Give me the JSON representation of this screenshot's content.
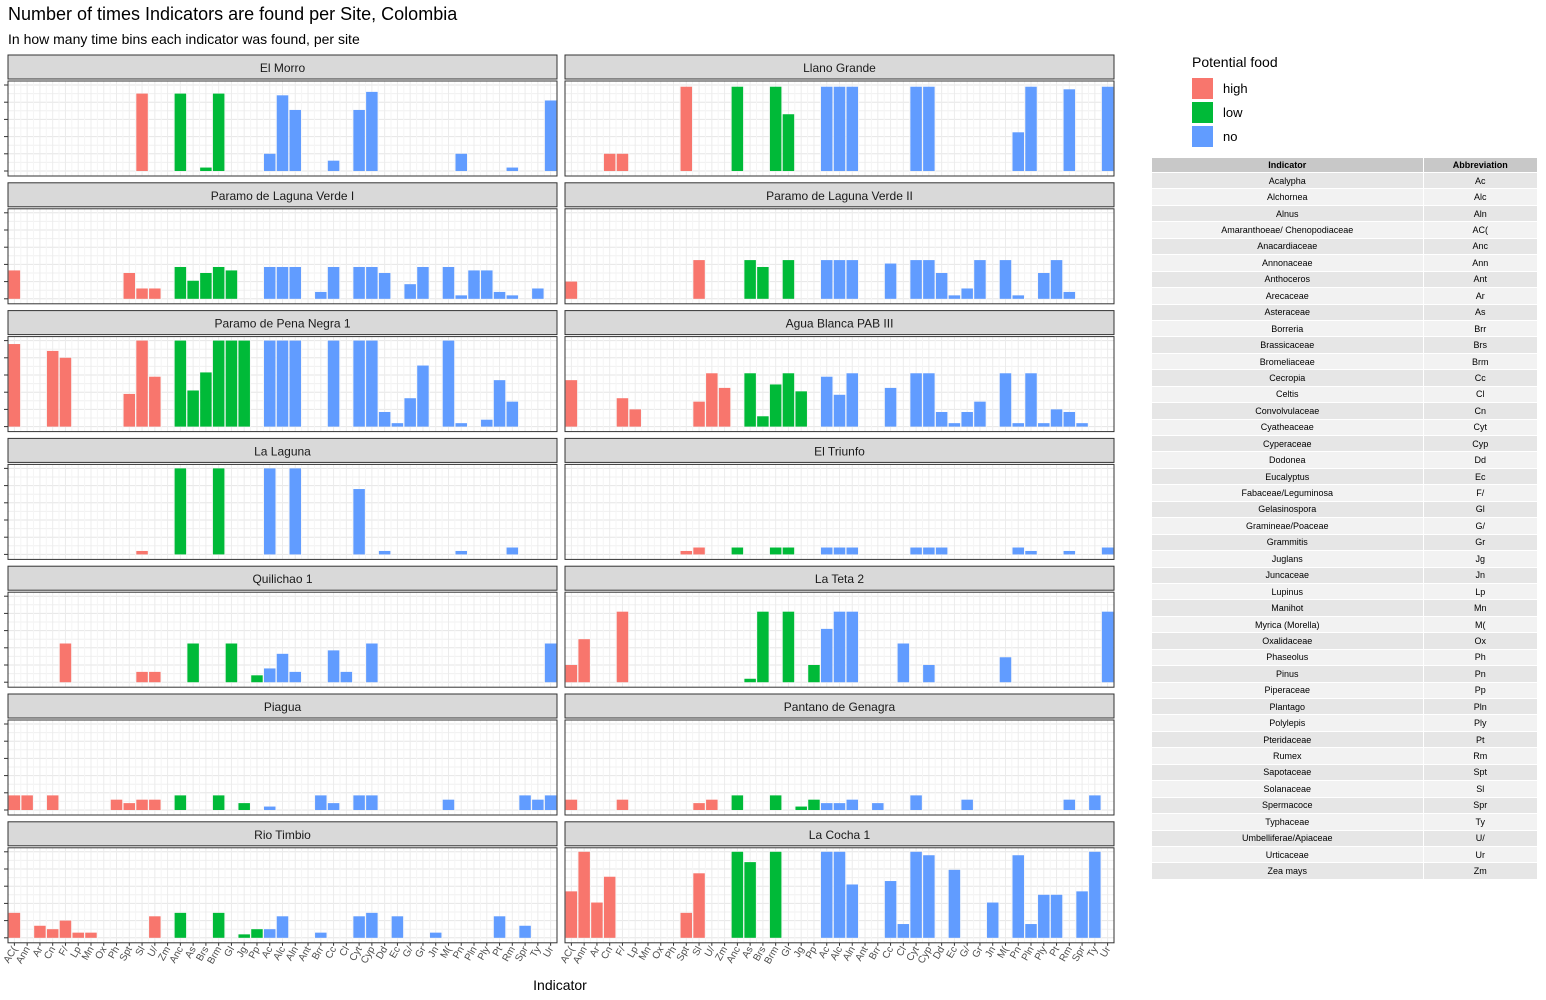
{
  "title": "Number of times Indicators are found per Site, Colombia",
  "subtitle": "In how many time bins each indicator was found, per site",
  "legend": {
    "title": "Potential food",
    "items": [
      {
        "key": "high",
        "label": "high",
        "color": "#F8766D"
      },
      {
        "key": "low",
        "label": "low",
        "color": "#00BA38"
      },
      {
        "key": "no",
        "label": "no",
        "color": "#619CFF"
      }
    ]
  },
  "table": {
    "headers": [
      "Indicator",
      "Abbreviation"
    ],
    "rows": [
      [
        "Acalypha",
        "Ac"
      ],
      [
        "Alchornea",
        "Alc"
      ],
      [
        "Alnus",
        "Aln"
      ],
      [
        "Amaranthoeae/ Chenopodiaceae",
        "AC("
      ],
      [
        "Anacardiaceae",
        "Anc"
      ],
      [
        "Annonaceae",
        "Ann"
      ],
      [
        "Anthoceros",
        "Ant"
      ],
      [
        "Arecaceae",
        "Ar"
      ],
      [
        "Asteraceae",
        "As"
      ],
      [
        "Borreria",
        "Brr"
      ],
      [
        "Brassicaceae",
        "Brs"
      ],
      [
        "Bromeliaceae",
        "Brm"
      ],
      [
        "Cecropia",
        "Cc"
      ],
      [
        "Celtis",
        "Cl"
      ],
      [
        "Convolvulaceae",
        "Cn"
      ],
      [
        "Cyatheaceae",
        "Cyt"
      ],
      [
        "Cyperaceae",
        "Cyp"
      ],
      [
        "Dodonea",
        "Dd"
      ],
      [
        "Eucalyptus",
        "Ec"
      ],
      [
        "Fabaceae/Leguminosa",
        "F/"
      ],
      [
        "Gelasinospora",
        "Gl"
      ],
      [
        "Gramineae/Poaceae",
        "G/"
      ],
      [
        "Grammitis",
        "Gr"
      ],
      [
        "Juglans",
        "Jg"
      ],
      [
        "Juncaceae",
        "Jn"
      ],
      [
        "Lupinus",
        "Lp"
      ],
      [
        "Manihot",
        "Mn"
      ],
      [
        "Myrica (Morella)",
        "M("
      ],
      [
        "Oxalidaceae",
        "Ox"
      ],
      [
        "Phaseolus",
        "Ph"
      ],
      [
        "Pinus",
        "Pn"
      ],
      [
        "Piperaceae",
        "Pp"
      ],
      [
        "Plantago",
        "Pln"
      ],
      [
        "Polylepis",
        "Ply"
      ],
      [
        "Pteridaceae",
        "Pt"
      ],
      [
        "Rumex",
        "Rm"
      ],
      [
        "Sapotaceae",
        "Spt"
      ],
      [
        "Solanaceae",
        "Sl"
      ],
      [
        "Spermacoce",
        "Spr"
      ],
      [
        "Typhaceae",
        "Ty"
      ],
      [
        "Umbelliferae/Apiaceae",
        "U/"
      ],
      [
        "Urticaceae",
        "Ur"
      ],
      [
        "Zea mays",
        "Zm"
      ]
    ]
  },
  "chart_data": {
    "type": "bar",
    "xlabel": "Indicator",
    "ylabel": "",
    "ylim": [
      0,
      1
    ],
    "categories": [
      "AC(",
      "Ann",
      "Ar",
      "Cn",
      "F/",
      "Lp",
      "Mn",
      "Ox",
      "Ph",
      "Spt",
      "Sl",
      "U/",
      "Zm",
      "Anc",
      "As",
      "Brs",
      "Brm",
      "Gl",
      "Jg",
      "Pp",
      "Ac",
      "Alc",
      "Aln",
      "Ant",
      "Brr",
      "Cc",
      "Cl",
      "Cyt",
      "Cyp",
      "Dd",
      "Ec",
      "G/",
      "Gr",
      "Jn",
      "M(",
      "Pn",
      "Pln",
      "Ply",
      "Pt",
      "Rm",
      "Spr",
      "Ty",
      "Ur"
    ],
    "category_food": [
      "high",
      "high",
      "high",
      "high",
      "high",
      "high",
      "high",
      "high",
      "high",
      "high",
      "high",
      "high",
      "high",
      "low",
      "low",
      "low",
      "low",
      "low",
      "low",
      "low",
      "no",
      "no",
      "no",
      "no",
      "no",
      "no",
      "no",
      "no",
      "no",
      "no",
      "no",
      "no",
      "no",
      "no",
      "no",
      "no",
      "no",
      "no",
      "no",
      "no",
      "no",
      "no",
      "no"
    ],
    "facets": [
      {
        "name": "El Morro",
        "values": [
          0,
          0,
          0,
          0,
          0,
          0,
          0,
          0,
          0,
          0,
          0.9,
          0,
          0,
          0.9,
          0,
          0.04,
          0.9,
          0,
          0,
          0,
          0.2,
          0.88,
          0.71,
          0,
          0,
          0.12,
          0,
          0.71,
          0.92,
          0,
          0,
          0,
          0,
          0,
          0,
          0.2,
          0,
          0,
          0,
          0.04,
          0,
          0,
          0.82
        ]
      },
      {
        "name": "Llano Grande",
        "values": [
          0,
          0,
          0,
          0.2,
          0.2,
          0,
          0,
          0,
          0,
          0.98,
          0,
          0,
          0,
          0.98,
          0,
          0,
          0.98,
          0.66,
          0,
          0,
          0.98,
          0.98,
          0.98,
          0,
          0,
          0,
          0,
          0.98,
          0.98,
          0,
          0,
          0,
          0,
          0,
          0,
          0.45,
          0.98,
          0,
          0,
          0.95,
          0,
          0,
          0.98
        ]
      },
      {
        "name": "Paramo de Laguna Verde I",
        "values": [
          0.33,
          0,
          0,
          0,
          0,
          0,
          0,
          0,
          0,
          0.3,
          0.12,
          0.12,
          0,
          0.37,
          0.21,
          0.3,
          0.37,
          0.33,
          0,
          0,
          0.37,
          0.37,
          0.37,
          0,
          0.08,
          0.37,
          0,
          0.37,
          0.37,
          0.3,
          0,
          0.17,
          0.37,
          0,
          0.37,
          0.04,
          0.33,
          0.33,
          0.08,
          0.04,
          0,
          0.12,
          0
        ]
      },
      {
        "name": "Paramo de Laguna Verde II",
        "values": [
          0.2,
          0,
          0,
          0,
          0,
          0,
          0,
          0,
          0,
          0,
          0.45,
          0,
          0,
          0,
          0.45,
          0.37,
          0,
          0.45,
          0,
          0,
          0.45,
          0.45,
          0.45,
          0,
          0,
          0.41,
          0,
          0.45,
          0.45,
          0.3,
          0.04,
          0.12,
          0.45,
          0,
          0.45,
          0.04,
          0,
          0.3,
          0.45,
          0.08,
          0,
          0,
          0
        ]
      },
      {
        "name": "Paramo de Pena Negra 1",
        "values": [
          0.96,
          0,
          0,
          0.88,
          0.8,
          0,
          0,
          0,
          0,
          0.38,
          1.0,
          0.58,
          0,
          1.0,
          0.42,
          0.63,
          1.0,
          1.0,
          1.0,
          0,
          1.0,
          1.0,
          1.0,
          0,
          0,
          1.0,
          0,
          1.0,
          1.0,
          0.17,
          0.04,
          0.33,
          0.71,
          0,
          1.0,
          0.04,
          0,
          0.08,
          0.54,
          0.29,
          0,
          0,
          0
        ]
      },
      {
        "name": "Agua Blanca PAB III",
        "values": [
          0.54,
          0,
          0,
          0,
          0.33,
          0.2,
          0,
          0,
          0,
          0,
          0.29,
          0.62,
          0.45,
          0,
          0.62,
          0.12,
          0.49,
          0.62,
          0.41,
          0,
          0.58,
          0.37,
          0.62,
          0,
          0,
          0.45,
          0,
          0.62,
          0.62,
          0.17,
          0.04,
          0.17,
          0.29,
          0,
          0.62,
          0.04,
          0.62,
          0.04,
          0.2,
          0.17,
          0.04,
          0,
          0
        ]
      },
      {
        "name": "La Laguna",
        "values": [
          0,
          0,
          0,
          0,
          0,
          0,
          0,
          0,
          0,
          0,
          0.04,
          0,
          0,
          1.0,
          0,
          0,
          1.0,
          0,
          0,
          0,
          1.0,
          0,
          1.0,
          0,
          0,
          0,
          0,
          0.76,
          0,
          0.04,
          0,
          0,
          0,
          0,
          0,
          0.04,
          0,
          0,
          0,
          0.08,
          0,
          0,
          0
        ]
      },
      {
        "name": "El Triunfo",
        "values": [
          0,
          0,
          0,
          0,
          0,
          0,
          0,
          0,
          0,
          0.04,
          0.08,
          0,
          0,
          0.08,
          0,
          0,
          0.08,
          0.08,
          0,
          0,
          0.08,
          0.08,
          0.08,
          0,
          0,
          0,
          0,
          0.08,
          0.08,
          0.08,
          0,
          0,
          0,
          0,
          0,
          0.08,
          0.04,
          0,
          0,
          0.04,
          0,
          0,
          0.08
        ]
      },
      {
        "name": "Quilichao 1",
        "values": [
          0,
          0,
          0,
          0,
          0.45,
          0,
          0,
          0,
          0,
          0,
          0.12,
          0.12,
          0,
          0,
          0.45,
          0,
          0,
          0.45,
          0,
          0.08,
          0.16,
          0.33,
          0.12,
          0,
          0,
          0.37,
          0.12,
          0,
          0.45,
          0,
          0,
          0,
          0,
          0,
          0,
          0,
          0,
          0,
          0,
          0,
          0,
          0,
          0.45
        ]
      },
      {
        "name": "La Teta 2",
        "values": [
          0.2,
          0.5,
          0,
          0,
          0.82,
          0,
          0,
          0,
          0,
          0,
          0,
          0,
          0,
          0,
          0.04,
          0.82,
          0,
          0.82,
          0,
          0.2,
          0.62,
          0.82,
          0.82,
          0,
          0,
          0,
          0.45,
          0,
          0.2,
          0,
          0,
          0,
          0,
          0,
          0.29,
          0,
          0,
          0,
          0,
          0,
          0,
          0,
          0.82
        ]
      },
      {
        "name": "Piagua",
        "values": [
          0.17,
          0.17,
          0,
          0.17,
          0,
          0,
          0,
          0,
          0.12,
          0.08,
          0.12,
          0.12,
          0,
          0.17,
          0,
          0,
          0.17,
          0,
          0.08,
          0,
          0.04,
          0,
          0,
          0,
          0.17,
          0.08,
          0,
          0.17,
          0.17,
          0,
          0,
          0,
          0,
          0,
          0.12,
          0,
          0,
          0,
          0,
          0,
          0.17,
          0.12,
          0.17
        ]
      },
      {
        "name": "Pantano de Genagra",
        "values": [
          0.12,
          0,
          0,
          0,
          0.12,
          0,
          0,
          0,
          0,
          0,
          0.08,
          0.12,
          0,
          0.17,
          0,
          0,
          0.17,
          0,
          0.04,
          0.12,
          0.08,
          0.08,
          0.12,
          0,
          0.08,
          0,
          0,
          0.17,
          0,
          0,
          0,
          0.12,
          0,
          0,
          0,
          0,
          0,
          0,
          0,
          0.12,
          0,
          0.17,
          0
        ]
      },
      {
        "name": "Rio Timbio",
        "values": [
          0.29,
          0,
          0.14,
          0.1,
          0.2,
          0.06,
          0.06,
          0,
          0,
          0,
          0,
          0.25,
          0,
          0.29,
          0,
          0,
          0.29,
          0,
          0.04,
          0.1,
          0.1,
          0.25,
          0,
          0,
          0.06,
          0,
          0,
          0.25,
          0.29,
          0,
          0.25,
          0,
          0,
          0.06,
          0,
          0,
          0,
          0,
          0.25,
          0,
          0.14,
          0,
          0
        ]
      },
      {
        "name": "La Cocha 1",
        "values": [
          0.54,
          1.0,
          0.41,
          0.71,
          0,
          0,
          0,
          0,
          0,
          0.29,
          0.75,
          0,
          0,
          1.0,
          0.88,
          0,
          1.0,
          0,
          0,
          0,
          1.0,
          1.0,
          0.62,
          0,
          0,
          0.66,
          0.16,
          1.0,
          0.96,
          0,
          0.79,
          0,
          0,
          0.41,
          0,
          0.96,
          0.16,
          0.5,
          0.5,
          0,
          0.54,
          1.0,
          0
        ]
      }
    ]
  }
}
